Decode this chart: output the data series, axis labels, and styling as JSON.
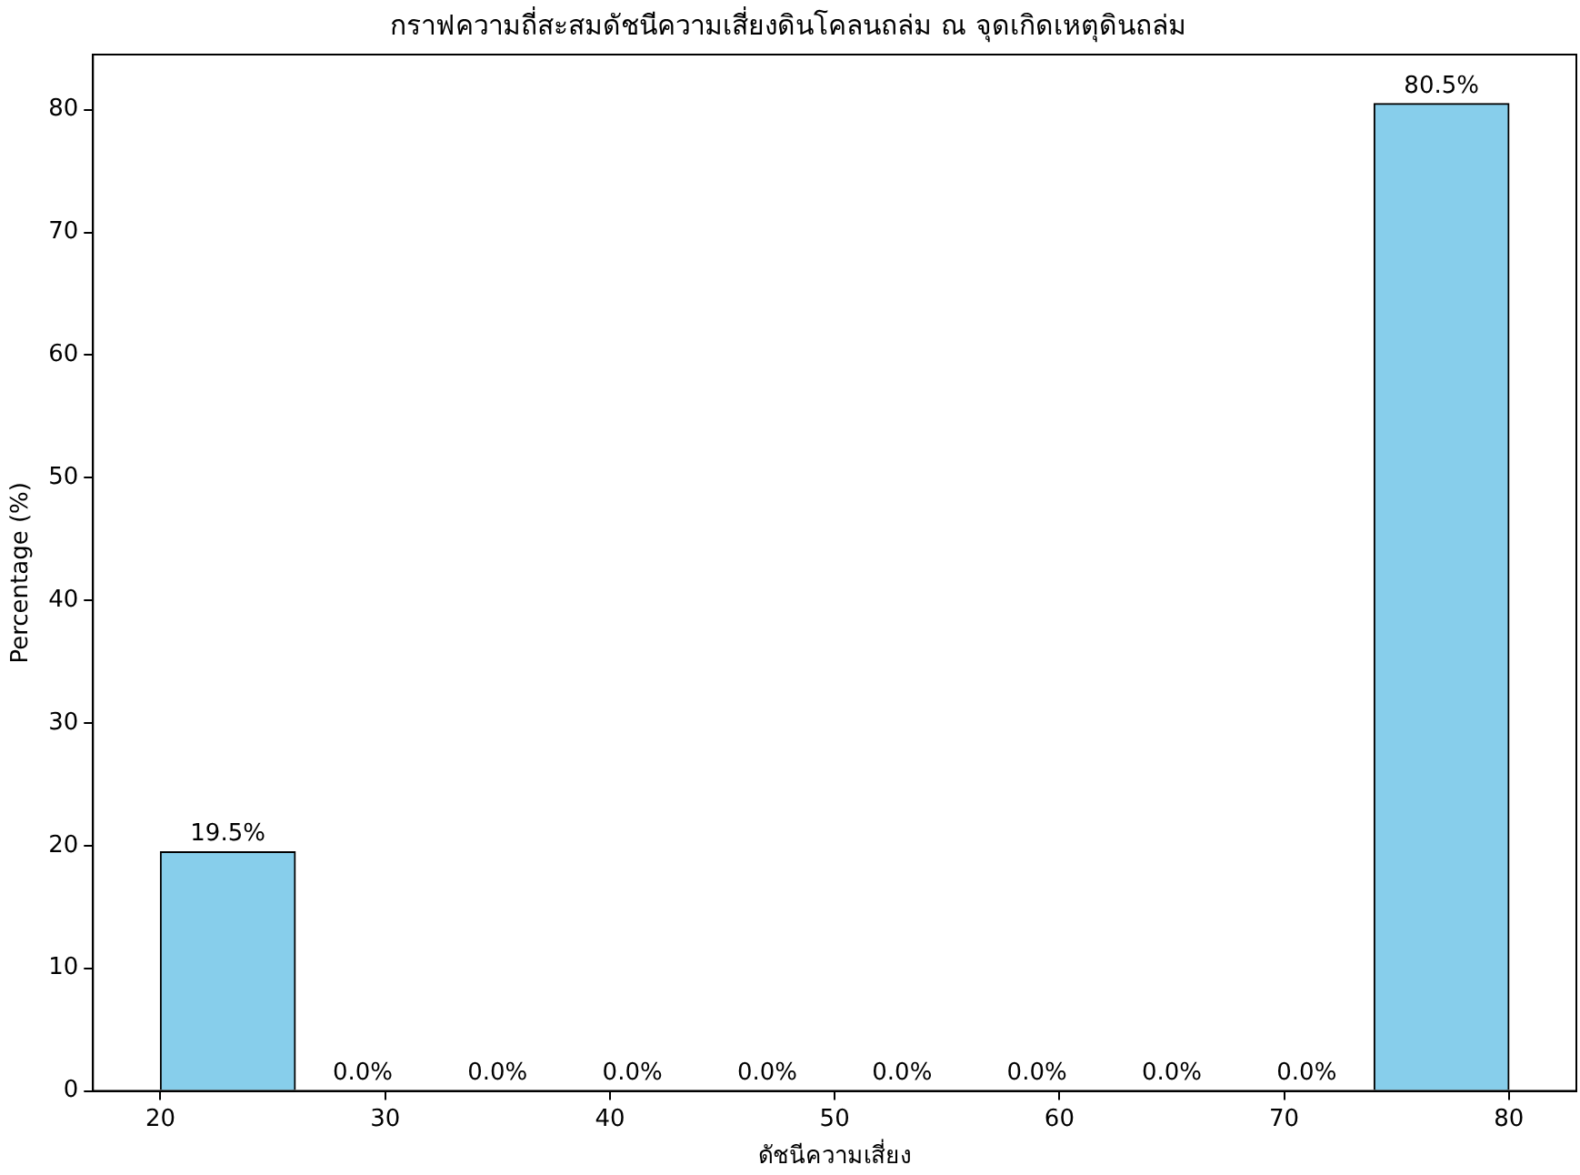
{
  "chart_data": {
    "type": "histogram",
    "title": "กราฟความถี่สะสมดัชนีความเสี่ยงดินโคลนถล่ม ณ จุดเกิดเหตุดินถล่ม",
    "xlabel": "ดัชนีความเสี่ยง",
    "ylabel": "Percentage (%)",
    "bins": [
      20,
      26,
      32,
      38,
      44,
      50,
      56,
      62,
      68,
      74,
      80
    ],
    "values": [
      19.5,
      0,
      0,
      0,
      0,
      0,
      0,
      0,
      0,
      80.5
    ],
    "value_labels": [
      "19.5%",
      "0.0%",
      "0.0%",
      "0.0%",
      "0.0%",
      "0.0%",
      "0.0%",
      "0.0%",
      "0.0%",
      "80.5%"
    ],
    "color": "#87ceeb",
    "xlim": [
      17,
      83
    ],
    "xticks": [
      20,
      30,
      40,
      50,
      60,
      70,
      80
    ],
    "ylim": [
      0,
      84.5
    ],
    "yticks": [
      0,
      10,
      20,
      30,
      40,
      50,
      60,
      70,
      80
    ],
    "grid": false,
    "legend": false
  }
}
